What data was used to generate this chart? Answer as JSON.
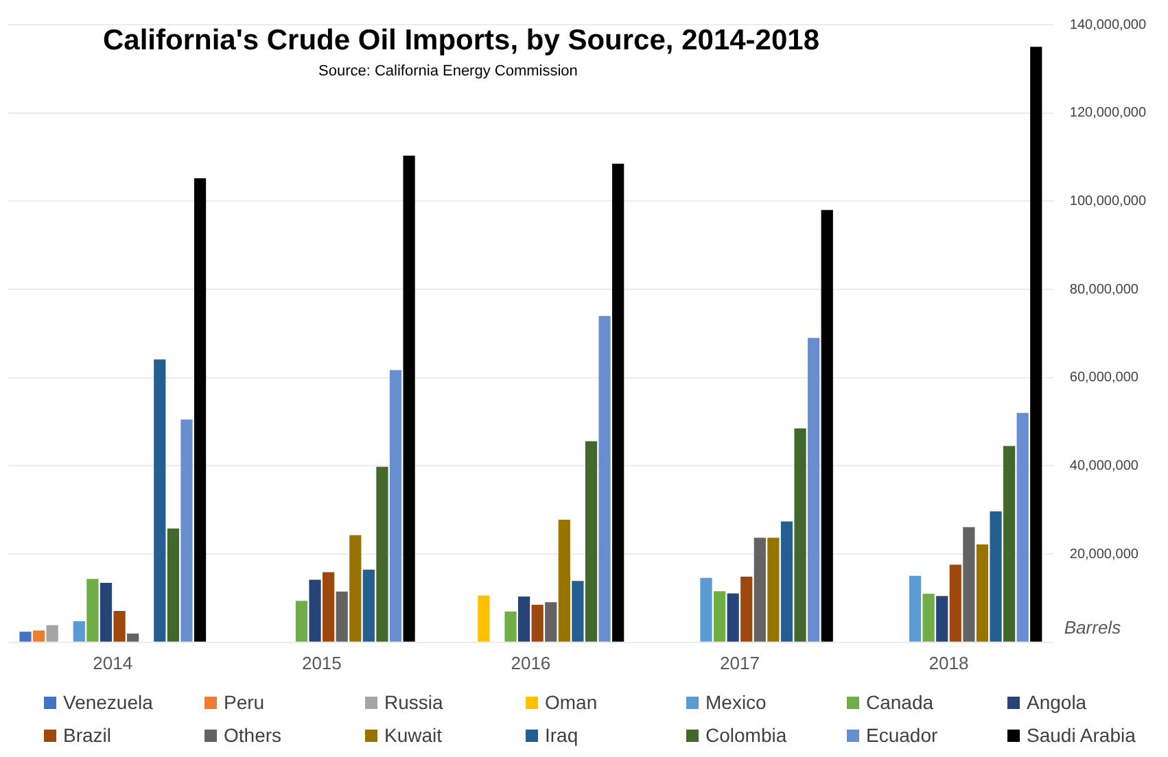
{
  "chart_data": {
    "type": "bar",
    "title": "California's Crude Oil Imports, by Source, 2014-2018",
    "subtitle": "Source: California Energy Commission",
    "ylabel": "Barrels",
    "categories": [
      "2014",
      "2015",
      "2016",
      "2017",
      "2018"
    ],
    "series": [
      {
        "name": "Venezuela",
        "color": "#4472c4",
        "values": [
          2400000,
          null,
          null,
          null,
          null
        ]
      },
      {
        "name": "Peru",
        "color": "#ed7d31",
        "values": [
          2700000,
          null,
          null,
          null,
          null
        ]
      },
      {
        "name": "Russia",
        "color": "#a5a5a5",
        "values": [
          3900000,
          null,
          null,
          null,
          null
        ]
      },
      {
        "name": "Oman",
        "color": "#ffc000",
        "values": [
          null,
          null,
          10600000,
          null,
          null
        ]
      },
      {
        "name": "Mexico",
        "color": "#5b9bd5",
        "values": [
          4800000,
          null,
          null,
          14600000,
          15100000
        ]
      },
      {
        "name": "Canada",
        "color": "#70ad47",
        "values": [
          14400000,
          9400000,
          7000000,
          11600000,
          11000000
        ]
      },
      {
        "name": "Angola",
        "color": "#264478",
        "values": [
          13500000,
          14200000,
          10400000,
          11100000,
          10500000
        ]
      },
      {
        "name": "Brazil",
        "color": "#9e480e",
        "values": [
          7100000,
          15900000,
          8500000,
          14900000,
          17600000
        ]
      },
      {
        "name": "Others",
        "color": "#636363",
        "values": [
          2000000,
          11500000,
          9100000,
          23700000,
          26100000
        ]
      },
      {
        "name": "Kuwait",
        "color": "#997300",
        "values": [
          null,
          24300000,
          27800000,
          23700000,
          22200000
        ]
      },
      {
        "name": "Iraq",
        "color": "#255e91",
        "values": [
          64100000,
          16500000,
          13900000,
          27400000,
          29700000
        ]
      },
      {
        "name": "Colombia",
        "color": "#43682b",
        "values": [
          25800000,
          39800000,
          45600000,
          48500000,
          44500000
        ]
      },
      {
        "name": "Ecuador",
        "color": "#698ed0",
        "values": [
          50500000,
          61700000,
          74000000,
          69000000,
          52000000
        ]
      },
      {
        "name": "Saudi Arabia",
        "color": "#000000",
        "values": [
          105200000,
          110300000,
          108500000,
          98000000,
          135000000
        ]
      }
    ],
    "ylim": [
      0,
      140000000
    ],
    "yticks": [
      {
        "value": 0,
        "label": null
      },
      {
        "value": 20000000,
        "label": "20,000,000"
      },
      {
        "value": 40000000,
        "label": "40,000,000"
      },
      {
        "value": 60000000,
        "label": "60,000,000"
      },
      {
        "value": 80000000,
        "label": "80,000,000"
      },
      {
        "value": 100000000,
        "label": "100,000,000"
      },
      {
        "value": 120000000,
        "label": "120,000,000"
      },
      {
        "value": 140000000,
        "label": "140,000,000"
      }
    ],
    "grid": "y",
    "legend": "bottom"
  }
}
